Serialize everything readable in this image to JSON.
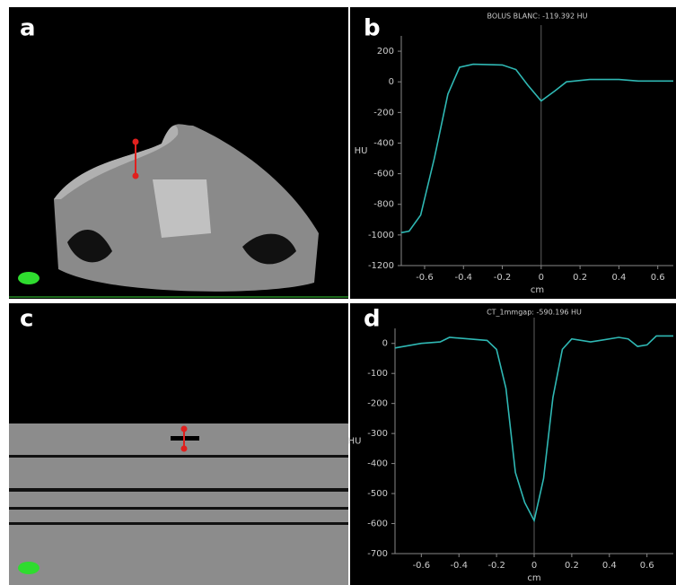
{
  "panel_labels": [
    "a",
    "b",
    "c",
    "d"
  ],
  "chart_data": [
    {
      "type": "line",
      "title": "BOLUS BLANC: -119.392 HU",
      "x_label": "cm",
      "y_label": "HU",
      "color": "#2fb8b4",
      "x": [
        -0.72,
        -0.68,
        -0.62,
        -0.55,
        -0.48,
        -0.42,
        -0.35,
        -0.2,
        -0.13,
        -0.07,
        0,
        0.07,
        0.13,
        0.25,
        0.4,
        0.5,
        0.68
      ],
      "values": [
        -985,
        -975,
        -870,
        -500,
        -80,
        95,
        115,
        110,
        80,
        -20,
        -125,
        -60,
        0,
        15,
        15,
        5,
        5
      ],
      "xlim": [
        -0.72,
        0.68
      ],
      "ylim": [
        -1200,
        300
      ],
      "xticks": [
        -0.6,
        -0.4,
        -0.2,
        0,
        0.2,
        0.4,
        0.6
      ],
      "yticks": [
        200,
        0,
        -200,
        -400,
        -600,
        -800,
        -1000,
        -1200
      ],
      "cursor": 0
    },
    {
      "type": "line",
      "title": "CT_1mmgap: -590.196 HU",
      "x_label": "cm",
      "y_label": "HU",
      "color": "#2fb8b4",
      "x": [
        -0.74,
        -0.6,
        -0.5,
        -0.45,
        -0.35,
        -0.25,
        -0.2,
        -0.15,
        -0.1,
        -0.05,
        0,
        0.05,
        0.1,
        0.15,
        0.2,
        0.3,
        0.35,
        0.45,
        0.5,
        0.55,
        0.6,
        0.65,
        0.74
      ],
      "values": [
        -15,
        0,
        5,
        20,
        15,
        10,
        -20,
        -150,
        -430,
        -530,
        -590,
        -450,
        -180,
        -20,
        15,
        5,
        10,
        20,
        15,
        -10,
        -5,
        25,
        25
      ],
      "xlim": [
        -0.74,
        0.74
      ],
      "ylim": [
        -700,
        50
      ],
      "xticks": [
        -0.6,
        -0.4,
        -0.2,
        0,
        0.2,
        0.4,
        0.6
      ],
      "yticks": [
        0,
        -100,
        -200,
        -300,
        -400,
        -500,
        -600,
        -700
      ],
      "cursor": 0
    }
  ]
}
